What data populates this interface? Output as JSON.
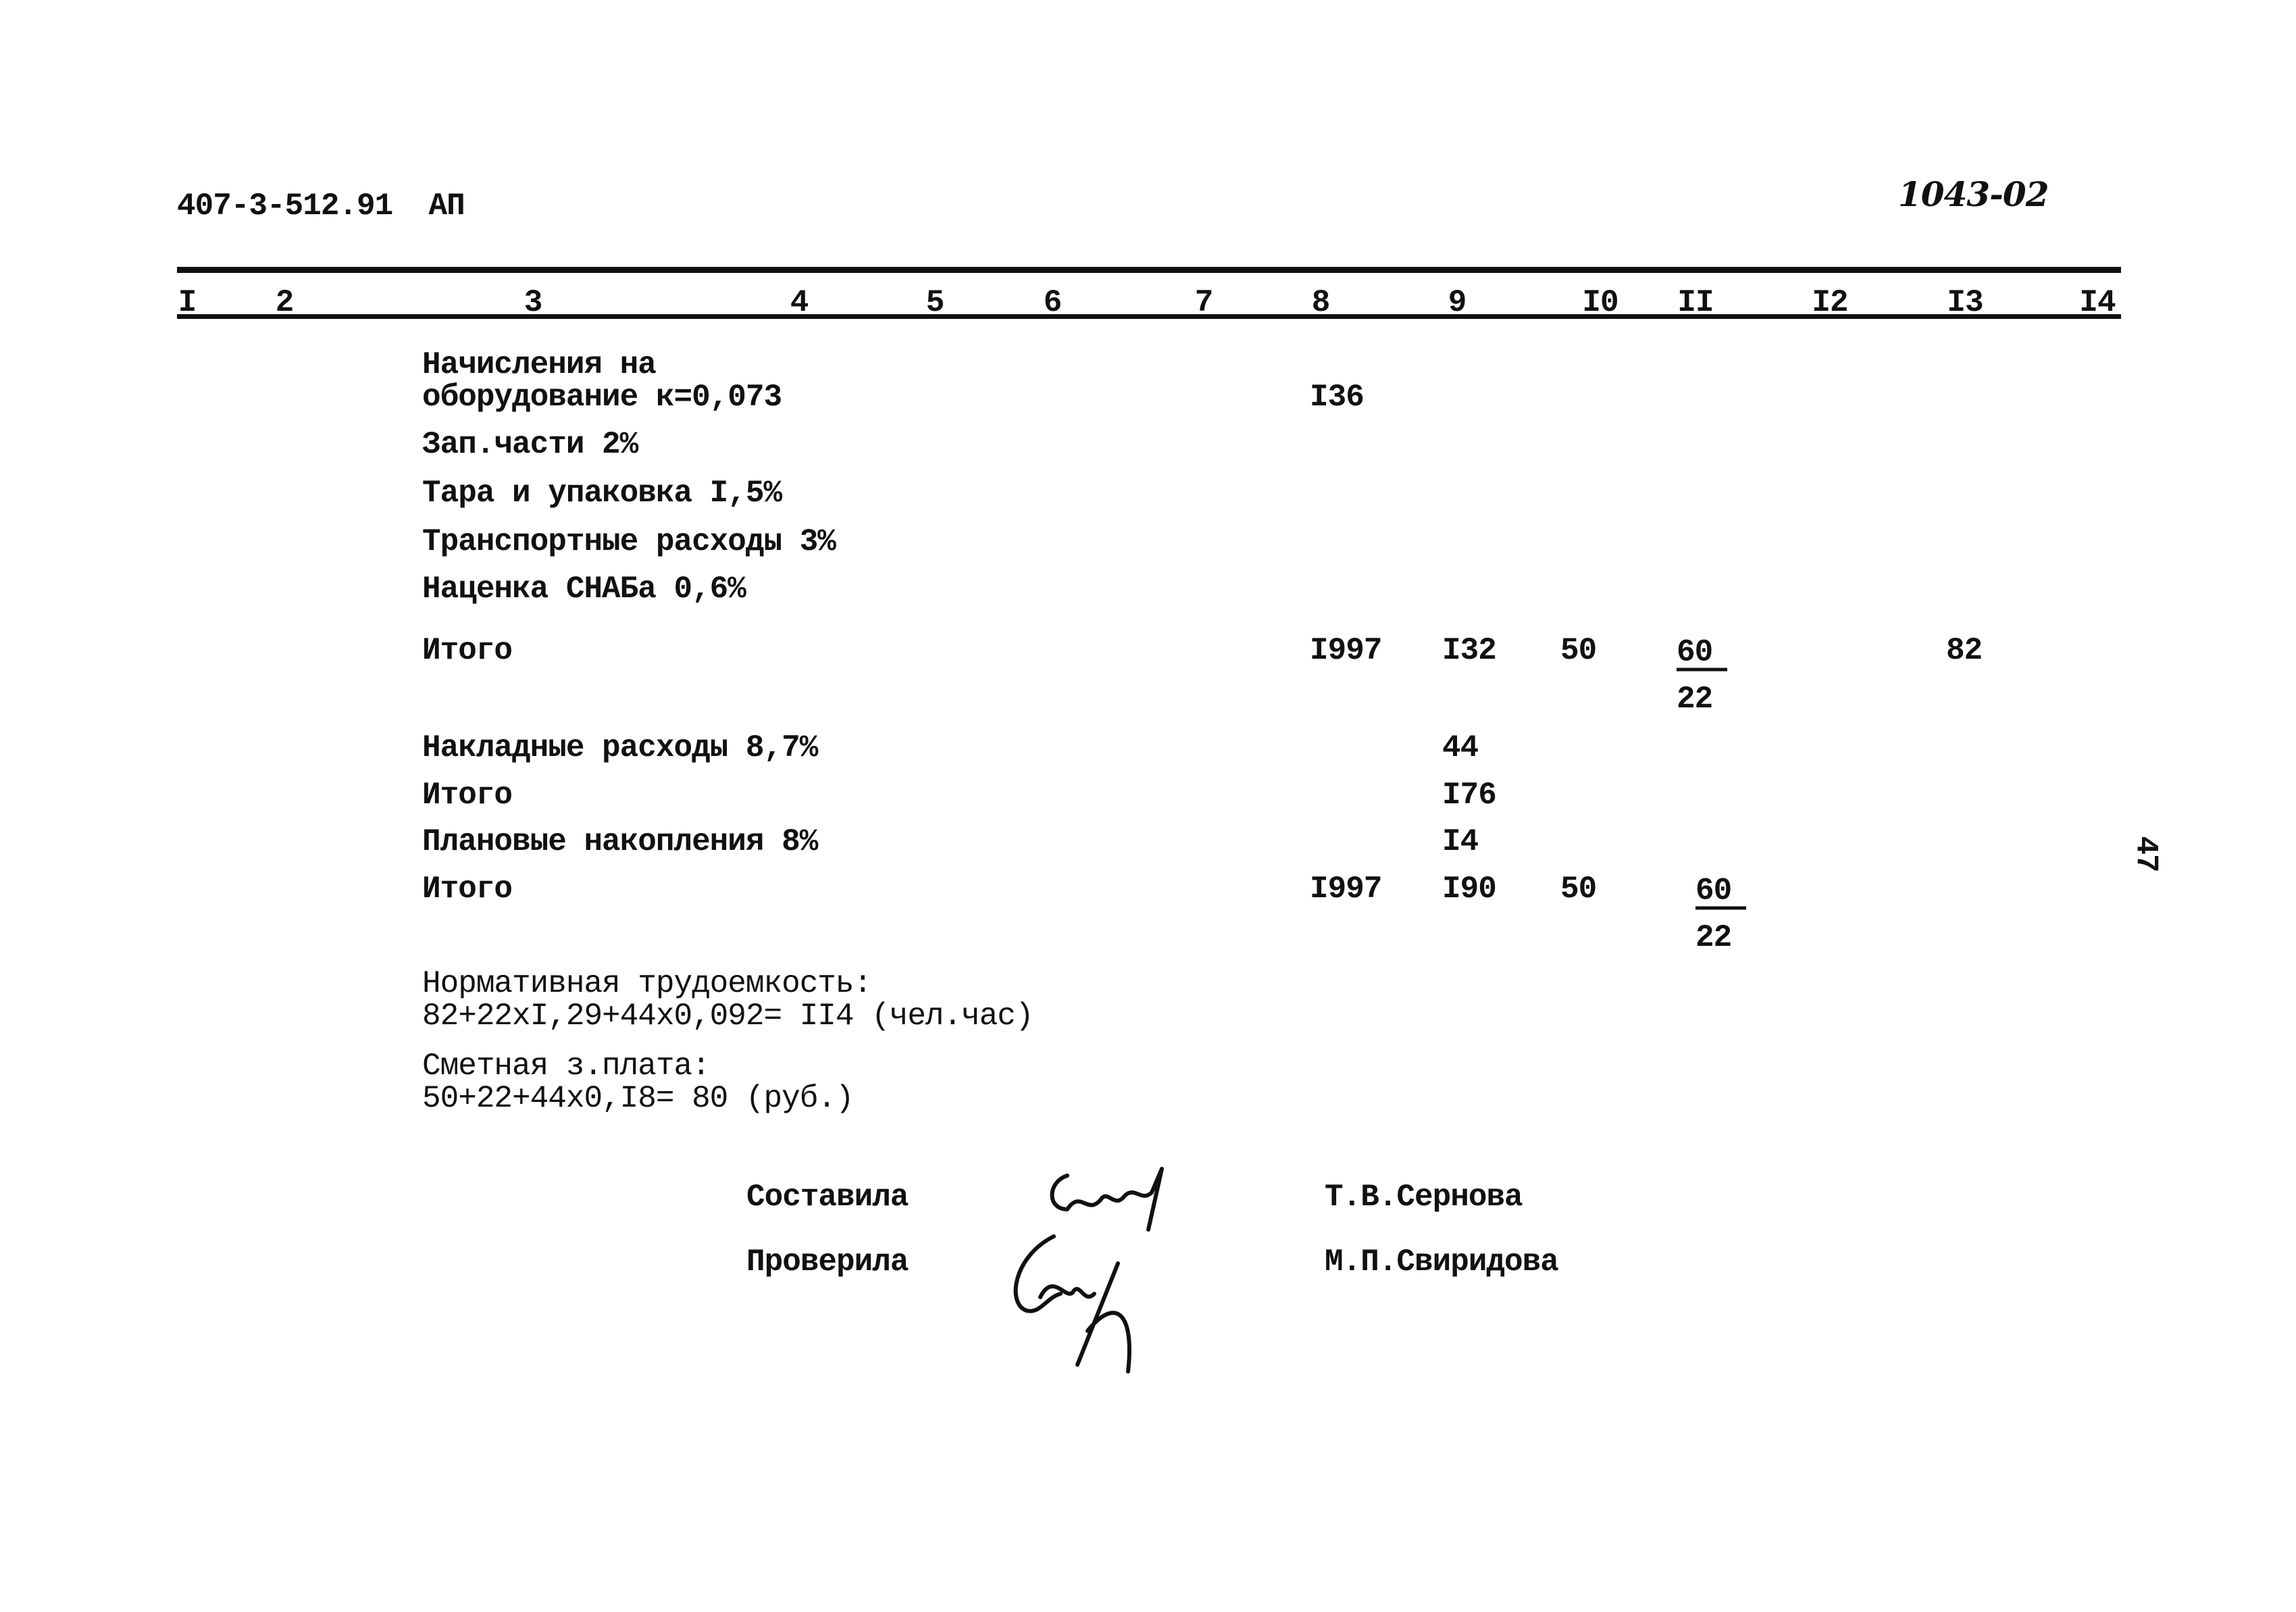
{
  "header": {
    "doc_code": "407-3-512.91  АП",
    "stamp": "1043-02"
  },
  "columns": [
    "I",
    "2",
    "3",
    "4",
    "5",
    "6",
    "7",
    "8",
    "9",
    "I0",
    "II",
    "I2",
    "I3",
    "I4"
  ],
  "rows": [
    {
      "label": "Начисления на",
      "label2": "оборудование к=0,073",
      "c8": "I36"
    },
    {
      "label": "Зап.части 2%"
    },
    {
      "label": "Тара и упаковка I,5%"
    },
    {
      "label": "Транспортные расходы 3%"
    },
    {
      "label": "Наценка СНАБа 0,6%"
    },
    {
      "label": "Итого",
      "c8": "I997",
      "c9": "I32",
      "c10": "50",
      "c11_top": "60",
      "c11_bottom": "22",
      "c13": "82"
    },
    {
      "label": "Накладные расходы 8,7%",
      "c9": "44"
    },
    {
      "label": "Итого",
      "c9": "I76"
    },
    {
      "label": "Плановые накопления 8%",
      "c9": "I4"
    },
    {
      "label": "Итого",
      "c8": "I997",
      "c9": "I90",
      "c10": "50",
      "c11_top": "60",
      "c11_bottom": "22"
    }
  ],
  "notes": {
    "labor_title": "Нормативная трудоемкость:",
    "labor_formula": "82+22xI,29+44x0,092= II4 (чел.час)",
    "wage_title": "Сметная з.плата:",
    "wage_formula": "50+22+44x0,I8= 80 (руб.)"
  },
  "signatures": {
    "compiled_label": "Составила",
    "compiled_name": "Т.В.Сернова",
    "checked_label": "Проверила",
    "checked_name": "М.П.Свиридова"
  },
  "page_number": "47"
}
